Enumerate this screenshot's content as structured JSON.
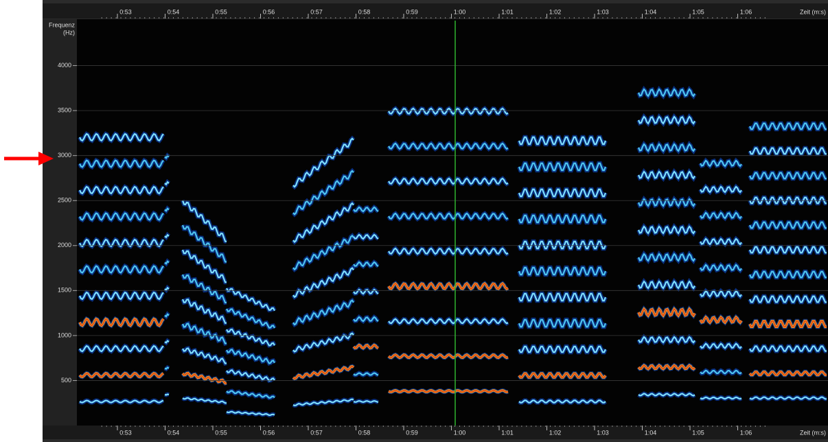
{
  "y_axis": {
    "title": [
      "Frequenz",
      "(Hz)"
    ],
    "range": [
      0,
      4500
    ],
    "ticks": [
      500,
      1000,
      1500,
      2000,
      2500,
      3000,
      3500,
      4000
    ]
  },
  "x_axis": {
    "title": "Zeit (m:s)",
    "ticks": [
      "0:53",
      "0:54",
      "0:55",
      "0:56",
      "0:57",
      "0:58",
      "0:59",
      "1:00",
      "1:01",
      "1:02",
      "1:03",
      "1:04",
      "1:05",
      "1:06"
    ]
  }
}
